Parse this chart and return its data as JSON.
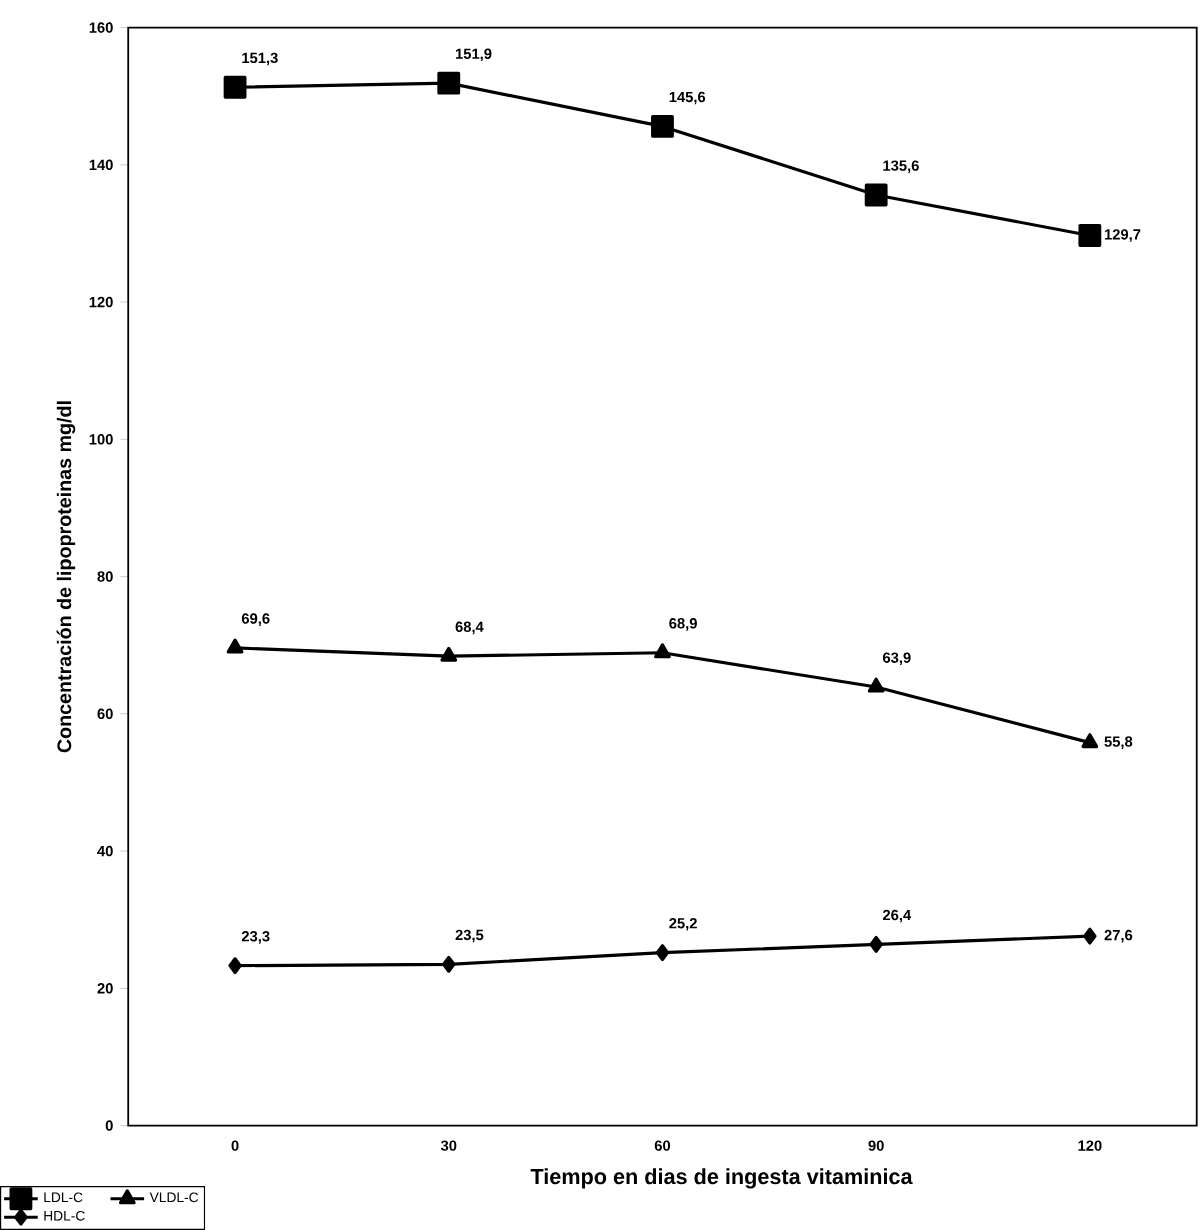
{
  "chart_data": {
    "type": "line",
    "xlabel": "Tiempo en dias de ingesta vitaminica",
    "ylabel": "Concentración de lipoproteinas mg/dl",
    "categories": [
      "0",
      "30",
      "60",
      "90",
      "120"
    ],
    "ylim": [
      0,
      160
    ],
    "yticks": [
      0,
      20,
      40,
      60,
      80,
      100,
      120,
      140,
      160
    ],
    "grid": false,
    "legend": "bottom left",
    "line_style": "solid",
    "series": [
      {
        "name": "LDL-C",
        "color": "#000000",
        "marker": "square",
        "values": [
          151.3,
          151.9,
          145.6,
          135.6,
          129.7
        ],
        "value_labels": [
          "151,3",
          "151,9",
          "145,6",
          "135,6",
          "129,7"
        ]
      },
      {
        "name": "VLDL-C",
        "color": "#000000",
        "marker": "triangle",
        "values": [
          69.6,
          68.4,
          68.9,
          63.9,
          55.8
        ],
        "value_labels": [
          "69,6",
          "68,4",
          "68,9",
          "63,9",
          "55,8"
        ]
      },
      {
        "name": "HDL-C",
        "color": "#000000",
        "marker": "diamond",
        "values": [
          23.3,
          23.5,
          25.2,
          26.4,
          27.6
        ],
        "value_labels": [
          "23,3",
          "23,5",
          "25,2",
          "26,4",
          "27,6"
        ]
      }
    ]
  }
}
